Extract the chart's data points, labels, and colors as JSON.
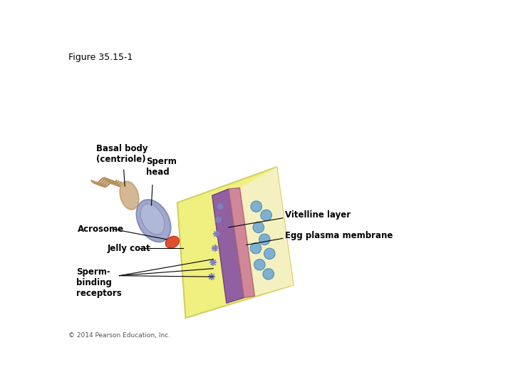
{
  "title": "Figure 35.15-1",
  "title_fontsize": 9,
  "bg_color": "#ffffff",
  "copyright": "© 2014 Pearson Education, Inc.",
  "labels": {
    "basal_body": "Basal body\n(centriole)",
    "sperm_head": "Sperm\nhead",
    "acrosome": "Acrosome",
    "jelly_coat": "Jelly coat",
    "sperm_binding": "Sperm-\nbinding\nreceptors",
    "vitelline": "Vitelline layer",
    "egg_plasma": "Egg plasma membrane"
  },
  "colors": {
    "sperm_body_fill": "#d4b896",
    "sperm_body_outline": "#c8a878",
    "sperm_head_fill": "#a0a8d0",
    "sperm_head_outline": "#8890b8",
    "acrosome_fill": "#e05030",
    "acrosome_outline": "#c04020",
    "flagellum": "#b89060",
    "egg_jelly_fill": "#f0f080",
    "egg_jelly_outline": "#d0d060",
    "vitelline_fill": "#9060a0",
    "vitelline_outline": "#704080",
    "plasma_fill": "#d08898",
    "plasma_outline": "#b06878",
    "egg_interior": "#f5f0c0",
    "egg_dots": "#80b0d0",
    "receptor_color": "#8080c0",
    "nucleus_fill": "#b0b8d8",
    "nucleus_outline": "#9098b8"
  }
}
